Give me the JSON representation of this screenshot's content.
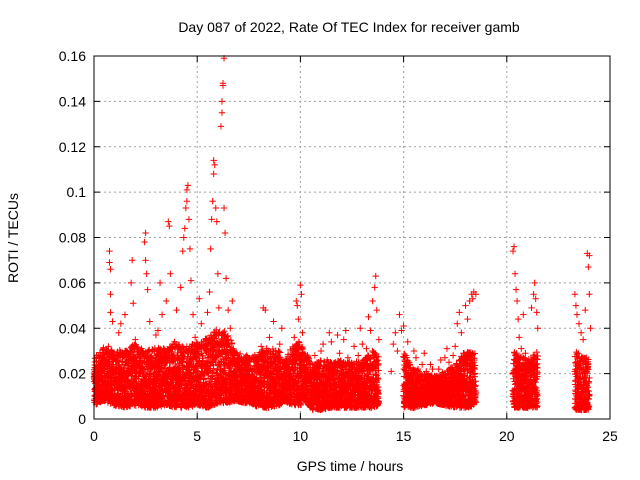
{
  "chart_data": {
    "type": "scatter",
    "title": "Day 087 of 2022, Rate Of TEC Index for receiver gamb",
    "xlabel": "GPS time / hours",
    "ylabel": "ROTI / TECUs",
    "xlim": [
      0,
      25
    ],
    "ylim": [
      0,
      0.16
    ],
    "x_ticks": [
      0,
      5,
      10,
      15,
      20,
      25
    ],
    "x_tick_labels": [
      "0",
      "5",
      "10",
      "15",
      "20",
      "25"
    ],
    "y_ticks": [
      0,
      0.02,
      0.04,
      0.06,
      0.08,
      0.1,
      0.12,
      0.14,
      0.16
    ],
    "y_tick_labels": [
      "0",
      "0.02",
      "0.04",
      "0.06",
      "0.08",
      "0.1",
      "0.12",
      "0.14",
      "0.16"
    ],
    "grid": true,
    "marker": "+",
    "color": "#ff0000",
    "data_gaps_hours": [
      [
        6.9,
        7.2
      ],
      [
        7.7,
        7.9
      ],
      [
        9.3,
        9.5
      ],
      [
        10.3,
        10.5
      ],
      [
        13.9,
        14.3
      ],
      [
        18.6,
        20.2
      ],
      [
        21.6,
        23.2
      ]
    ],
    "series": [
      {
        "name": "ROTI",
        "points": [
          [
            0.1,
            0.018
          ],
          [
            0.2,
            0.012
          ],
          [
            0.3,
            0.025
          ],
          [
            0.4,
            0.028
          ],
          [
            0.5,
            0.021
          ],
          [
            0.6,
            0.015
          ],
          [
            0.7,
            0.032
          ],
          [
            0.75,
            0.069
          ],
          [
            0.75,
            0.074
          ],
          [
            0.8,
            0.066
          ],
          [
            0.8,
            0.055
          ],
          [
            0.8,
            0.047
          ],
          [
            0.9,
            0.043
          ],
          [
            1.0,
            0.022
          ],
          [
            1.1,
            0.017
          ],
          [
            1.2,
            0.038
          ],
          [
            1.3,
            0.042
          ],
          [
            1.4,
            0.029
          ],
          [
            1.5,
            0.046
          ],
          [
            1.6,
            0.019
          ],
          [
            1.7,
            0.014
          ],
          [
            1.8,
            0.06
          ],
          [
            1.85,
            0.07
          ],
          [
            1.9,
            0.051
          ],
          [
            2.0,
            0.035
          ],
          [
            2.1,
            0.024
          ],
          [
            2.2,
            0.013
          ],
          [
            2.3,
            0.031
          ],
          [
            2.45,
            0.078
          ],
          [
            2.5,
            0.082
          ],
          [
            2.5,
            0.07
          ],
          [
            2.55,
            0.064
          ],
          [
            2.6,
            0.057
          ],
          [
            2.7,
            0.043
          ],
          [
            2.8,
            0.02
          ],
          [
            2.9,
            0.016
          ],
          [
            3.0,
            0.037
          ],
          [
            3.1,
            0.039
          ],
          [
            3.2,
            0.06
          ],
          [
            3.3,
            0.046
          ],
          [
            3.4,
            0.019
          ],
          [
            3.5,
            0.052
          ],
          [
            3.6,
            0.087
          ],
          [
            3.65,
            0.085
          ],
          [
            3.7,
            0.064
          ],
          [
            3.8,
            0.026
          ],
          [
            3.9,
            0.034
          ],
          [
            4.0,
            0.048
          ],
          [
            4.1,
            0.021
          ],
          [
            4.2,
            0.058
          ],
          [
            4.3,
            0.074
          ],
          [
            4.35,
            0.08
          ],
          [
            4.4,
            0.084
          ],
          [
            4.45,
            0.093
          ],
          [
            4.5,
            0.101
          ],
          [
            4.5,
            0.096
          ],
          [
            4.55,
            0.103
          ],
          [
            4.6,
            0.088
          ],
          [
            4.65,
            0.075
          ],
          [
            4.7,
            0.061
          ],
          [
            4.8,
            0.046
          ],
          [
            4.9,
            0.036
          ],
          [
            5.0,
            0.027
          ],
          [
            5.1,
            0.053
          ],
          [
            5.2,
            0.042
          ],
          [
            5.3,
            0.019
          ],
          [
            5.4,
            0.03
          ],
          [
            5.5,
            0.047
          ],
          [
            5.6,
            0.056
          ],
          [
            5.65,
            0.075
          ],
          [
            5.7,
            0.088
          ],
          [
            5.75,
            0.096
          ],
          [
            5.8,
            0.108
          ],
          [
            5.8,
            0.114
          ],
          [
            5.85,
            0.112
          ],
          [
            5.9,
            0.093
          ],
          [
            5.95,
            0.087
          ],
          [
            6.0,
            0.064
          ],
          [
            6.05,
            0.049
          ],
          [
            6.1,
            0.033
          ],
          [
            6.15,
            0.129
          ],
          [
            6.2,
            0.135
          ],
          [
            6.2,
            0.14
          ],
          [
            6.25,
            0.147
          ],
          [
            6.25,
            0.148
          ],
          [
            6.3,
            0.159
          ],
          [
            6.3,
            0.093
          ],
          [
            6.35,
            0.082
          ],
          [
            6.4,
            0.062
          ],
          [
            6.5,
            0.048
          ],
          [
            6.6,
            0.04
          ],
          [
            6.7,
            0.052
          ],
          [
            6.8,
            0.025
          ],
          [
            7.3,
            0.018
          ],
          [
            7.4,
            0.028
          ],
          [
            7.5,
            0.021
          ],
          [
            7.6,
            0.012
          ],
          [
            8.0,
            0.016
          ],
          [
            8.1,
            0.032
          ],
          [
            8.2,
            0.049
          ],
          [
            8.3,
            0.048
          ],
          [
            8.4,
            0.025
          ],
          [
            8.5,
            0.036
          ],
          [
            8.6,
            0.018
          ],
          [
            8.7,
            0.043
          ],
          [
            8.8,
            0.029
          ],
          [
            8.9,
            0.021
          ],
          [
            9.0,
            0.033
          ],
          [
            9.1,
            0.04
          ],
          [
            9.2,
            0.017
          ],
          [
            9.6,
            0.024
          ],
          [
            9.7,
            0.036
          ],
          [
            9.8,
            0.052
          ],
          [
            9.85,
            0.05
          ],
          [
            9.9,
            0.044
          ],
          [
            10.0,
            0.059
          ],
          [
            10.05,
            0.055
          ],
          [
            10.1,
            0.038
          ],
          [
            10.2,
            0.022
          ],
          [
            10.6,
            0.015
          ],
          [
            10.7,
            0.028
          ],
          [
            10.8,
            0.019
          ],
          [
            10.9,
            0.024
          ],
          [
            11.0,
            0.03
          ],
          [
            11.1,
            0.033
          ],
          [
            11.2,
            0.021
          ],
          [
            11.3,
            0.026
          ],
          [
            11.4,
            0.038
          ],
          [
            11.5,
            0.034
          ],
          [
            11.6,
            0.018
          ],
          [
            11.7,
            0.023
          ],
          [
            11.8,
            0.037
          ],
          [
            11.9,
            0.029
          ],
          [
            12.0,
            0.02
          ],
          [
            12.1,
            0.035
          ],
          [
            12.2,
            0.039
          ],
          [
            12.3,
            0.027
          ],
          [
            12.4,
            0.016
          ],
          [
            12.5,
            0.024
          ],
          [
            12.6,
            0.032
          ],
          [
            12.7,
            0.021
          ],
          [
            12.8,
            0.028
          ],
          [
            12.9,
            0.04
          ],
          [
            13.0,
            0.033
          ],
          [
            13.1,
            0.019
          ],
          [
            13.2,
            0.031
          ],
          [
            13.3,
            0.045
          ],
          [
            13.4,
            0.039
          ],
          [
            13.5,
            0.052
          ],
          [
            13.6,
            0.058
          ],
          [
            13.65,
            0.063
          ],
          [
            13.7,
            0.048
          ],
          [
            13.8,
            0.035
          ],
          [
            14.4,
            0.021
          ],
          [
            14.5,
            0.033
          ],
          [
            14.6,
            0.038
          ],
          [
            14.7,
            0.03
          ],
          [
            14.8,
            0.046
          ],
          [
            14.9,
            0.039
          ],
          [
            15.0,
            0.041
          ],
          [
            15.1,
            0.028
          ],
          [
            15.2,
            0.034
          ],
          [
            15.3,
            0.024
          ],
          [
            15.4,
            0.019
          ],
          [
            15.5,
            0.03
          ],
          [
            15.6,
            0.027
          ],
          [
            15.7,
            0.022
          ],
          [
            15.8,
            0.018
          ],
          [
            15.9,
            0.024
          ],
          [
            16.0,
            0.029
          ],
          [
            16.1,
            0.021
          ],
          [
            16.2,
            0.017
          ],
          [
            16.3,
            0.024
          ],
          [
            16.4,
            0.022
          ],
          [
            16.5,
            0.019
          ],
          [
            16.6,
            0.015
          ],
          [
            16.7,
            0.022
          ],
          [
            16.8,
            0.026
          ],
          [
            16.9,
            0.019
          ],
          [
            17.0,
            0.027
          ],
          [
            17.1,
            0.031
          ],
          [
            17.2,
            0.025
          ],
          [
            17.3,
            0.02
          ],
          [
            17.4,
            0.028
          ],
          [
            17.5,
            0.032
          ],
          [
            17.6,
            0.042
          ],
          [
            17.7,
            0.047
          ],
          [
            17.8,
            0.038
          ],
          [
            17.9,
            0.029
          ],
          [
            18.0,
            0.05
          ],
          [
            18.1,
            0.044
          ],
          [
            18.2,
            0.052
          ],
          [
            18.3,
            0.055
          ],
          [
            18.35,
            0.053
          ],
          [
            18.4,
            0.056
          ],
          [
            18.5,
            0.055
          ],
          [
            20.3,
            0.074
          ],
          [
            20.35,
            0.076
          ],
          [
            20.4,
            0.064
          ],
          [
            20.45,
            0.057
          ],
          [
            20.5,
            0.052
          ],
          [
            20.55,
            0.044
          ],
          [
            20.6,
            0.036
          ],
          [
            20.7,
            0.031
          ],
          [
            20.8,
            0.046
          ],
          [
            20.9,
            0.029
          ],
          [
            21.0,
            0.025
          ],
          [
            21.1,
            0.022
          ],
          [
            21.2,
            0.049
          ],
          [
            21.3,
            0.055
          ],
          [
            21.35,
            0.06
          ],
          [
            21.4,
            0.053
          ],
          [
            21.45,
            0.047
          ],
          [
            21.5,
            0.04
          ],
          [
            23.3,
            0.055
          ],
          [
            23.35,
            0.05
          ],
          [
            23.4,
            0.046
          ],
          [
            23.5,
            0.042
          ],
          [
            23.6,
            0.038
          ],
          [
            23.7,
            0.035
          ],
          [
            23.8,
            0.048
          ],
          [
            23.9,
            0.073
          ],
          [
            23.95,
            0.067
          ],
          [
            24.0,
            0.072
          ],
          [
            24.0,
            0.055
          ],
          [
            24.05,
            0.04
          ]
        ],
        "band_samples": [
          [
            0.0,
            0.006,
            0.027
          ],
          [
            0.5,
            0.008,
            0.032
          ],
          [
            1.0,
            0.006,
            0.03
          ],
          [
            1.5,
            0.005,
            0.031
          ],
          [
            2.0,
            0.006,
            0.033
          ],
          [
            2.5,
            0.005,
            0.03
          ],
          [
            3.0,
            0.005,
            0.032
          ],
          [
            3.5,
            0.006,
            0.031
          ],
          [
            4.0,
            0.005,
            0.034
          ],
          [
            4.5,
            0.005,
            0.032
          ],
          [
            5.0,
            0.006,
            0.034
          ],
          [
            5.5,
            0.005,
            0.036
          ],
          [
            6.0,
            0.007,
            0.04
          ],
          [
            6.5,
            0.007,
            0.038
          ],
          [
            6.85,
            0.008,
            0.03
          ],
          [
            7.3,
            0.007,
            0.028
          ],
          [
            7.6,
            0.007,
            0.027
          ],
          [
            8.0,
            0.005,
            0.03
          ],
          [
            8.5,
            0.005,
            0.032
          ],
          [
            9.0,
            0.006,
            0.03
          ],
          [
            9.2,
            0.008,
            0.026
          ],
          [
            9.6,
            0.006,
            0.032
          ],
          [
            10.0,
            0.006,
            0.035
          ],
          [
            10.2,
            0.008,
            0.03
          ],
          [
            10.6,
            0.004,
            0.024
          ],
          [
            11.0,
            0.004,
            0.026
          ],
          [
            11.5,
            0.005,
            0.025
          ],
          [
            12.0,
            0.005,
            0.026
          ],
          [
            12.5,
            0.005,
            0.025
          ],
          [
            13.0,
            0.005,
            0.026
          ],
          [
            13.5,
            0.005,
            0.03
          ],
          [
            13.8,
            0.006,
            0.028
          ],
          [
            14.4,
            0.006,
            0.03
          ],
          [
            15.0,
            0.005,
            0.03
          ],
          [
            15.5,
            0.005,
            0.022
          ],
          [
            16.0,
            0.006,
            0.02
          ],
          [
            16.5,
            0.007,
            0.019
          ],
          [
            17.0,
            0.006,
            0.021
          ],
          [
            17.5,
            0.005,
            0.024
          ],
          [
            18.0,
            0.005,
            0.03
          ],
          [
            18.5,
            0.006,
            0.029
          ],
          [
            20.3,
            0.005,
            0.03
          ],
          [
            20.7,
            0.005,
            0.028
          ],
          [
            21.0,
            0.005,
            0.026
          ],
          [
            21.5,
            0.005,
            0.03
          ],
          [
            23.3,
            0.004,
            0.03
          ],
          [
            23.7,
            0.004,
            0.028
          ],
          [
            24.0,
            0.004,
            0.026
          ]
        ]
      }
    ]
  }
}
